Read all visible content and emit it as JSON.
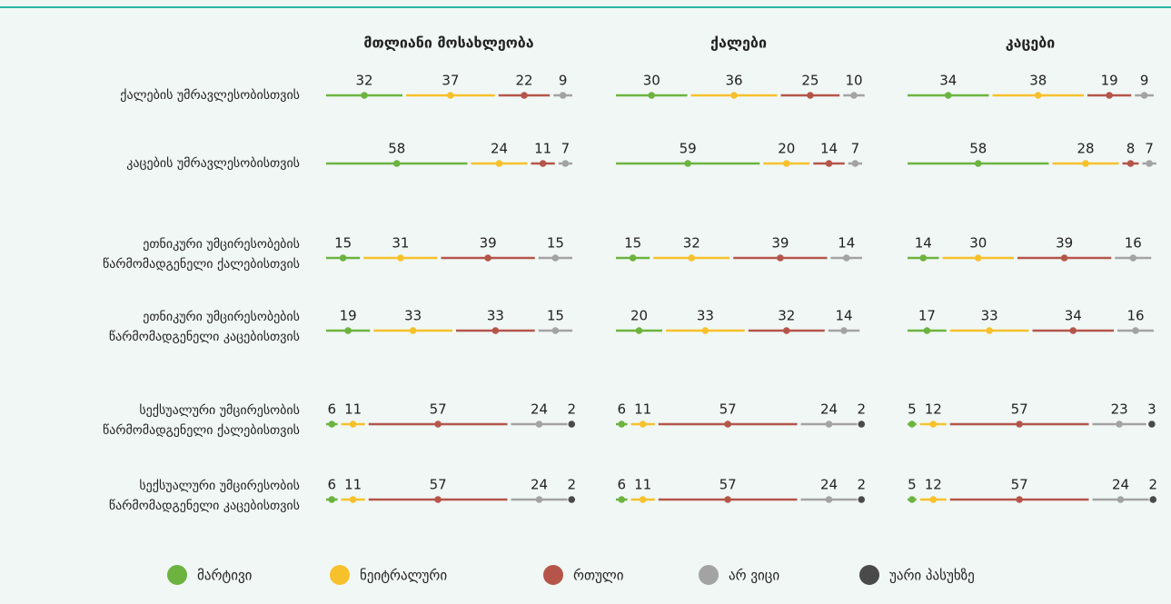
{
  "chart_data": {
    "type": "dot-bar",
    "panels": [
      "მთლიანი მოსახლეობა",
      "ქალები",
      "კაცები"
    ],
    "categories": [
      [
        "ქალების უმრავლესობისთვის"
      ],
      [
        "კაცების უმრავლესობისთვის"
      ],
      [
        "ეთნიკური უმცირესობების",
        "წარმომადგენელი ქალებისთვის"
      ],
      [
        "ეთნიკური უმცირესობების",
        "წარმომადგენელი კაცებისთვის"
      ],
      [
        "სექსუალური უმცირესობის",
        "წარმომადგენელი ქალებისთვის"
      ],
      [
        "სექსუალური უმცირესობის",
        "წარმომადგენელი კაცებისთვის"
      ]
    ],
    "series": [
      {
        "name": "მარტივი",
        "color": "#6db33f",
        "values": [
          [
            32,
            58,
            15,
            19,
            6,
            6
          ],
          [
            30,
            59,
            15,
            20,
            6,
            6
          ],
          [
            34,
            58,
            14,
            17,
            5,
            5
          ]
        ]
      },
      {
        "name": "ნეიტრალური",
        "color": "#f7c12c",
        "values": [
          [
            37,
            24,
            31,
            33,
            11,
            11
          ],
          [
            36,
            20,
            32,
            33,
            11,
            11
          ],
          [
            38,
            28,
            30,
            33,
            12,
            12
          ]
        ]
      },
      {
        "name": "რთული",
        "color": "#b5554a",
        "values": [
          [
            22,
            11,
            39,
            33,
            57,
            57
          ],
          [
            25,
            14,
            39,
            32,
            57,
            57
          ],
          [
            19,
            8,
            39,
            34,
            57,
            57
          ]
        ]
      },
      {
        "name": "არ ვიცი",
        "color": "#a3a3a3",
        "values": [
          [
            9,
            7,
            15,
            15,
            24,
            24
          ],
          [
            10,
            7,
            14,
            14,
            24,
            24
          ],
          [
            9,
            7,
            16,
            16,
            23,
            24
          ]
        ]
      },
      {
        "name": "უარი პასუხზე",
        "color": "#4a4a4a",
        "values": [
          [
            null,
            null,
            null,
            null,
            2,
            2
          ],
          [
            null,
            null,
            null,
            null,
            2,
            2
          ],
          [
            null,
            null,
            null,
            null,
            3,
            2
          ]
        ]
      }
    ]
  }
}
